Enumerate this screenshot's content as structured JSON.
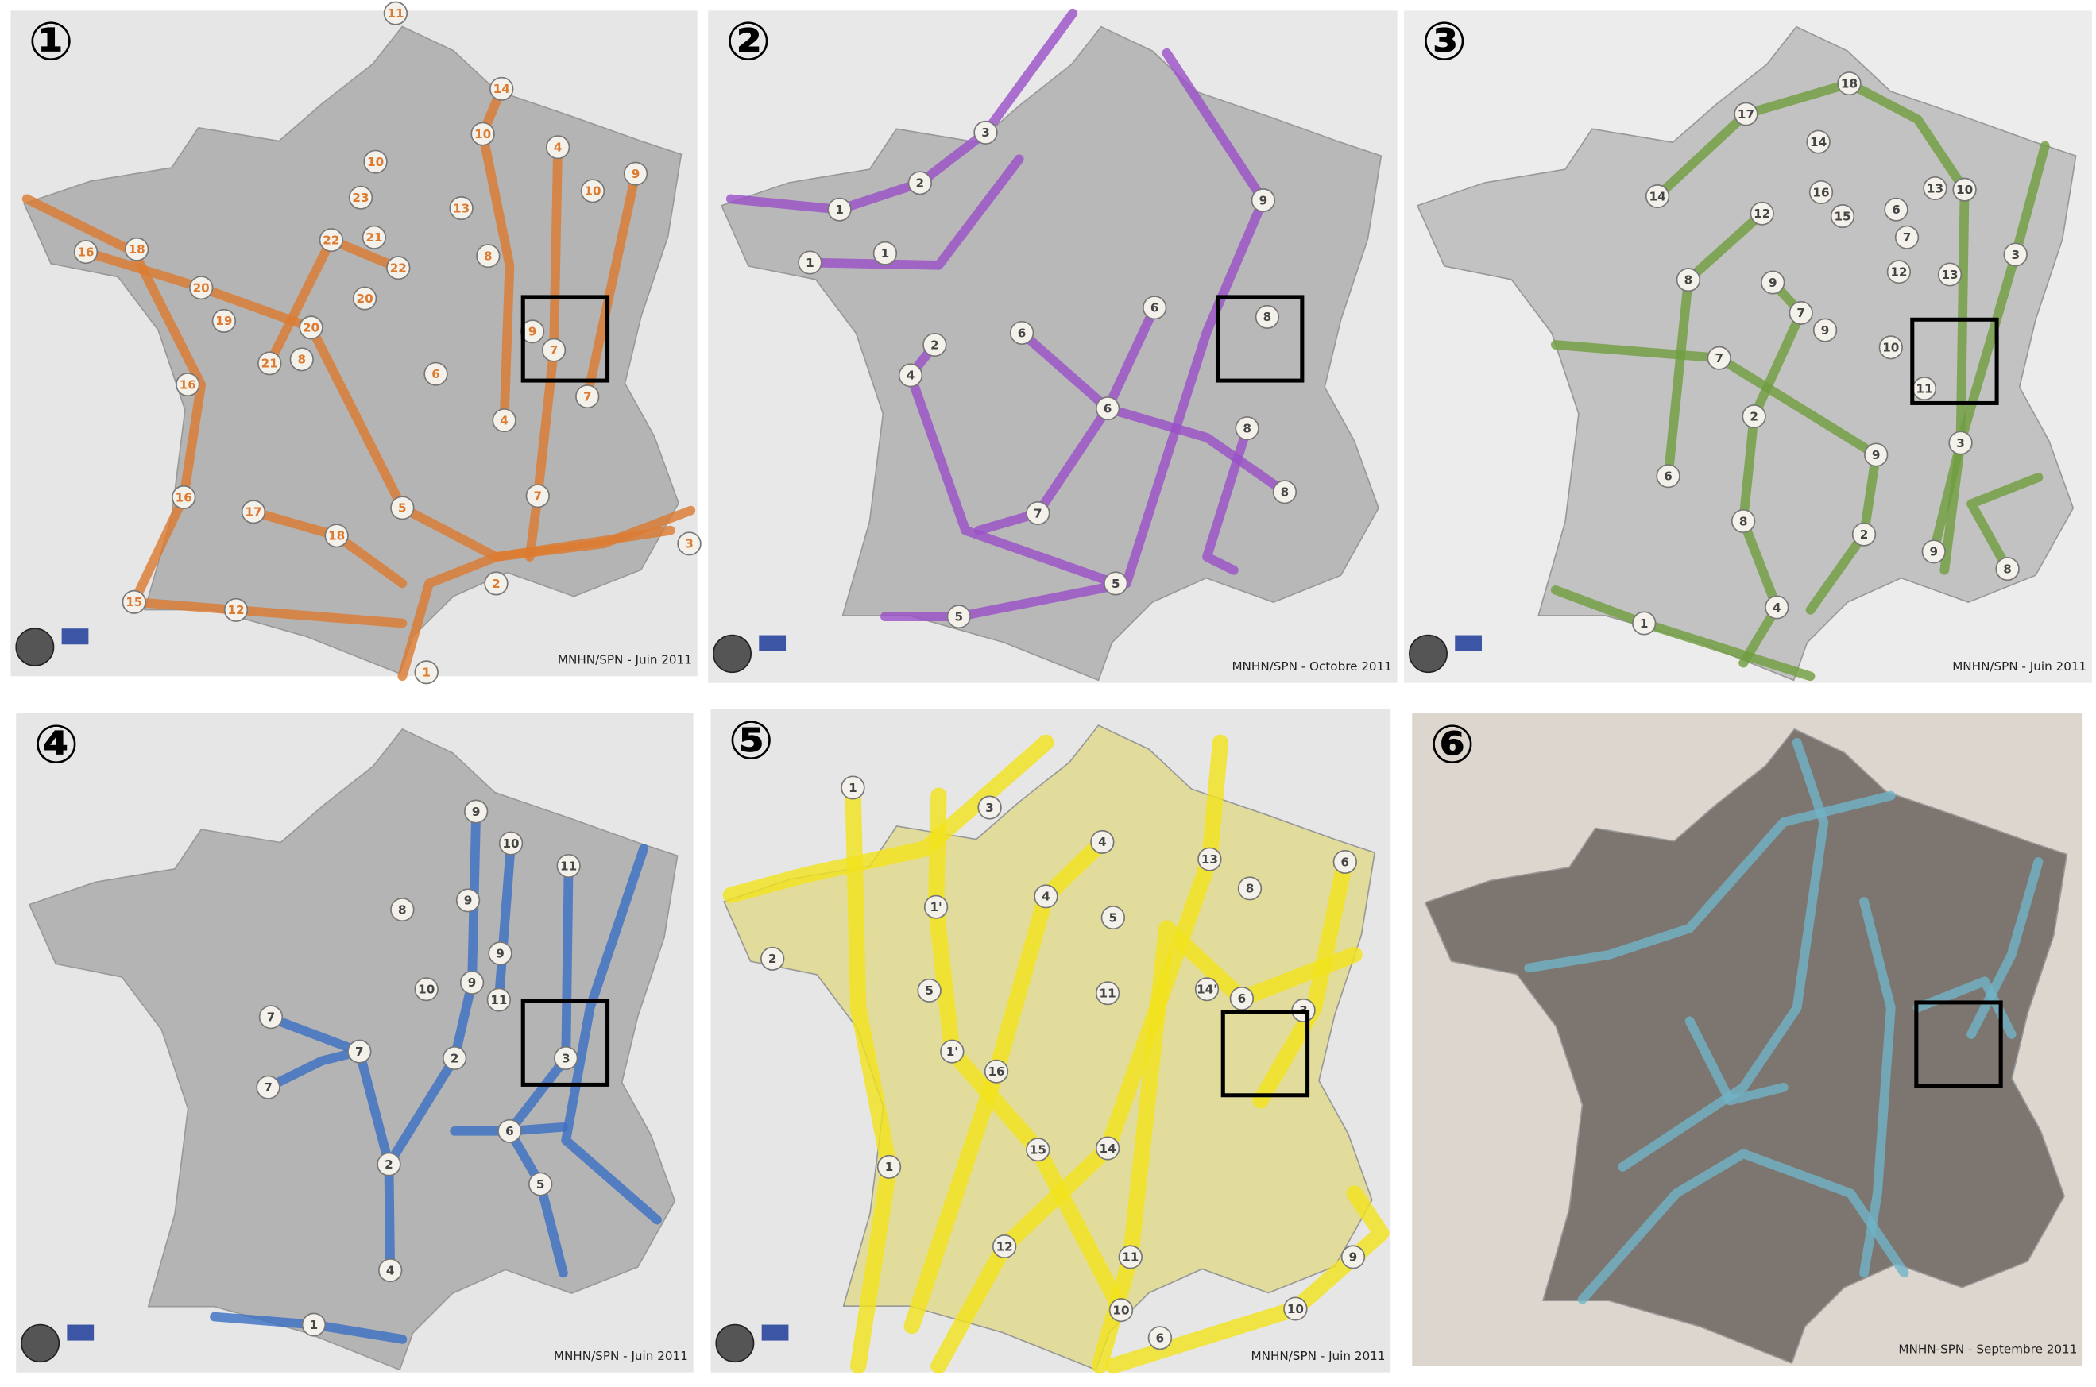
{
  "panels": [
    {
      "number": "①",
      "credit": "MNHN/SPN - Juin 2011",
      "color": "#dc7a30",
      "labels": [
        "11",
        "14",
        "10",
        "4",
        "9",
        "10",
        "10",
        "23",
        "13",
        "16",
        "18",
        "22",
        "21",
        "8",
        "22",
        "20",
        "20",
        "19",
        "20",
        "9",
        "7",
        "21",
        "8",
        "6",
        "7",
        "16",
        "4",
        "16",
        "17",
        "5",
        "7",
        "18",
        "3",
        "2",
        "15",
        "12",
        "1"
      ]
    },
    {
      "number": "②",
      "credit": "MNHN/SPN - Octobre 2011",
      "color": "#9a4fc8",
      "labels": [
        "3",
        "2",
        "1",
        "9",
        "1",
        "1",
        "6",
        "6",
        "8",
        "2",
        "4",
        "6",
        "8",
        "8",
        "7",
        "5",
        "5"
      ]
    },
    {
      "number": "③",
      "credit": "MNHN/SPN - Juin 2011",
      "color": "#6f9e3f",
      "labels": [
        "18",
        "17",
        "14",
        "16",
        "15",
        "6",
        "13",
        "10",
        "14",
        "12",
        "7",
        "3",
        "12",
        "13",
        "8",
        "9",
        "7",
        "9",
        "10",
        "7",
        "11",
        "2",
        "3",
        "9",
        "6",
        "8",
        "2",
        "9",
        "8",
        "4",
        "1"
      ]
    },
    {
      "number": "④",
      "credit": "MNHN/SPN - Juin 2011",
      "color": "#3b6fc4",
      "labels": [
        "9",
        "10",
        "11",
        "8",
        "9",
        "9",
        "10",
        "9",
        "11",
        "7",
        "7",
        "2",
        "3",
        "7",
        "6",
        "2",
        "5",
        "4",
        "1"
      ]
    },
    {
      "number": "⑤",
      "credit": "MNHN/SPN - Juin 2011",
      "color": "#f3e31c",
      "labels": [
        "1",
        "3",
        "4",
        "13",
        "8",
        "6",
        "1'",
        "4",
        "5",
        "2",
        "5",
        "11",
        "14'",
        "6",
        "3",
        "1'",
        "16",
        "15",
        "14",
        "1",
        "12",
        "11",
        "9",
        "10",
        "10",
        "6"
      ]
    },
    {
      "number": "⑥",
      "credit": "MNHN-SPN - Septembre 2011",
      "color": "#70b4c8",
      "labels": []
    }
  ]
}
